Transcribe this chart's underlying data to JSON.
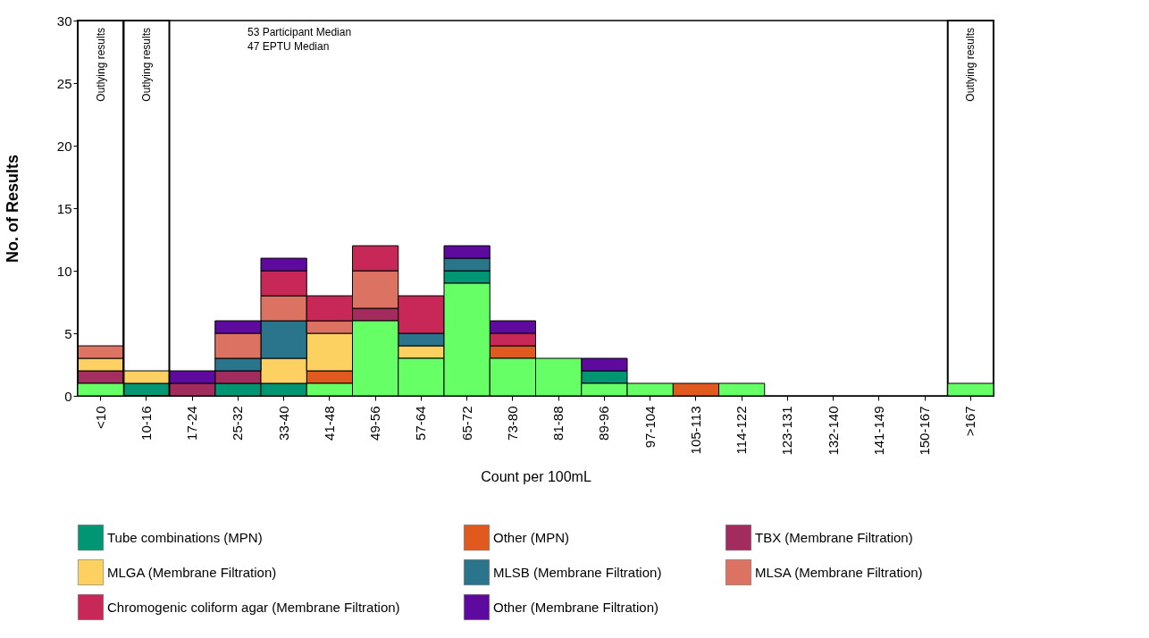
{
  "chart_data": {
    "type": "bar",
    "stacked": true,
    "xlabel": "Count per 100mL",
    "ylabel": "No. of Results",
    "categories": [
      "<10",
      "10-16",
      "17-24",
      "25-32",
      "33-40",
      "41-48",
      "49-56",
      "57-64",
      "65-72",
      "73-80",
      "81-88",
      "89-96",
      "97-104",
      "105-113",
      "114-122",
      "123-131",
      "132-140",
      "141-149",
      "150-167",
      ">167"
    ],
    "series": [
      {
        "color": "#66ff66",
        "values": [
          1,
          0,
          0,
          0,
          0,
          1,
          6,
          3,
          9,
          3,
          3,
          1,
          1,
          0,
          1,
          0,
          0,
          0,
          0,
          1
        ]
      },
      {
        "name": "Tube combinations (MPN)",
        "color": "#009673",
        "values": [
          0,
          1,
          0,
          1,
          1,
          0,
          0,
          0,
          1,
          0,
          0,
          1,
          0,
          0,
          0,
          0,
          0,
          0,
          0,
          0
        ]
      },
      {
        "name": "Other (MPN)",
        "color": "#e05a20",
        "values": [
          0,
          0,
          0,
          0,
          0,
          1,
          0,
          0,
          0,
          1,
          0,
          0,
          0,
          1,
          0,
          0,
          0,
          0,
          0,
          0
        ]
      },
      {
        "name": "TBX (Membrane Filtration)",
        "color": "#a32c5e",
        "values": [
          1,
          0,
          1,
          1,
          0,
          0,
          1,
          0,
          0,
          0,
          0,
          0,
          0,
          0,
          0,
          0,
          0,
          0,
          0,
          0
        ]
      },
      {
        "name": "MLGA (Membrane Filtration)",
        "color": "#fdd062",
        "values": [
          1,
          1,
          0,
          0,
          2,
          3,
          0,
          1,
          0,
          0,
          0,
          0,
          0,
          0,
          0,
          0,
          0,
          0,
          0,
          0
        ]
      },
      {
        "name": "MLSB (Membrane Filtration)",
        "color": "#2a748c",
        "values": [
          0,
          0,
          0,
          1,
          3,
          0,
          0,
          1,
          1,
          0,
          0,
          0,
          0,
          0,
          0,
          0,
          0,
          0,
          0,
          0
        ]
      },
      {
        "name": "MLSA (Membrane Filtration)",
        "color": "#dc7262",
        "values": [
          1,
          0,
          0,
          2,
          2,
          1,
          3,
          0,
          0,
          0,
          0,
          0,
          0,
          0,
          0,
          0,
          0,
          0,
          0,
          0
        ]
      },
      {
        "name": "Chromogenic coliform agar (Membrane Filtration)",
        "color": "#c82858",
        "values": [
          0,
          0,
          0,
          0,
          2,
          2,
          2,
          3,
          0,
          1,
          0,
          0,
          0,
          0,
          0,
          0,
          0,
          0,
          0,
          0
        ]
      },
      {
        "name": "Other (Membrane Filtration)",
        "color": "#5e0a9e",
        "values": [
          0,
          0,
          1,
          1,
          1,
          0,
          0,
          0,
          1,
          1,
          0,
          1,
          0,
          0,
          0,
          0,
          0,
          0,
          0,
          0
        ]
      }
    ],
    "ylim": [
      0,
      30
    ],
    "yticks": [
      0,
      5,
      10,
      15,
      20,
      25,
      30
    ],
    "grid": false,
    "legend": "bottom",
    "bands": [
      {
        "axis": "x",
        "from": "<10",
        "to": "<10",
        "label": "Outlying results"
      },
      {
        "axis": "x",
        "from": "10-16",
        "to": "10-16",
        "label": "Outlying results"
      },
      {
        "axis": "x",
        "from": ">167",
        "to": ">167",
        "label": "Outlying results"
      }
    ],
    "annotations": [
      "53   Participant Median",
      "47   EPTU Median"
    ]
  }
}
